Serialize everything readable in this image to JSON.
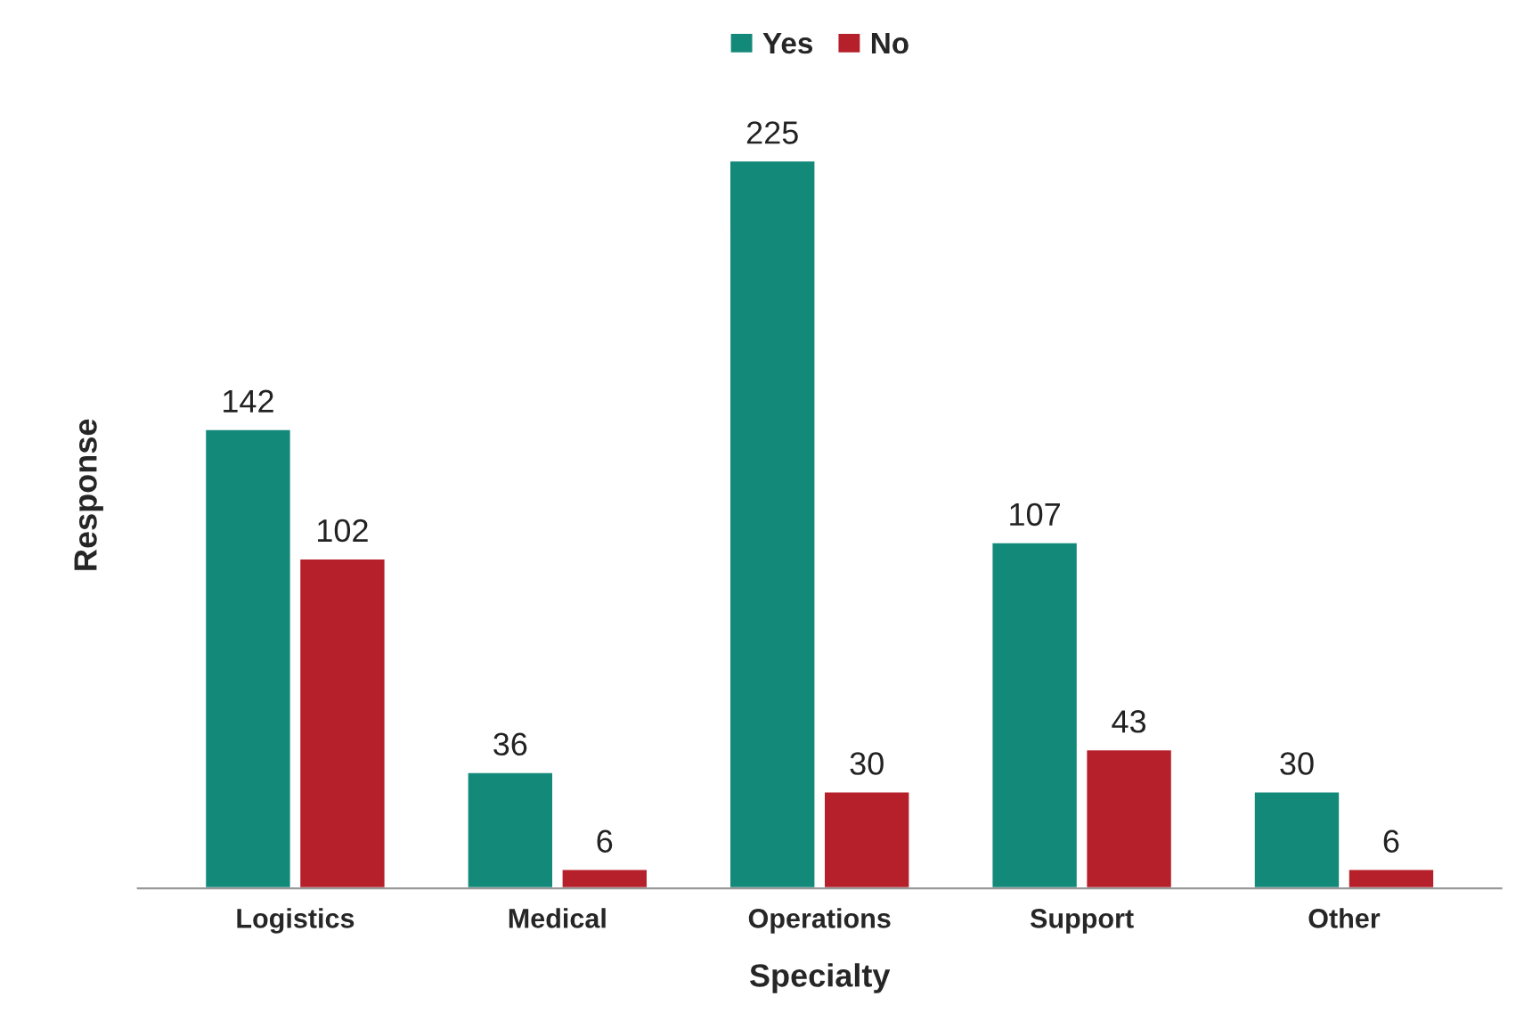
{
  "chart_data": {
    "type": "bar",
    "xlabel": "Specialty",
    "ylabel": "Response",
    "categories": [
      "Logistics",
      "Medical",
      "Operations",
      "Support",
      "Other"
    ],
    "series": [
      {
        "name": "Yes",
        "color": "#13897a",
        "values": [
          142,
          36,
          225,
          107,
          30
        ]
      },
      {
        "name": "No",
        "color": "#b5202a",
        "values": [
          102,
          6,
          30,
          43,
          6
        ]
      }
    ],
    "data_labels": true,
    "legend": "top",
    "tick_labels": "x",
    "grid": false
  }
}
